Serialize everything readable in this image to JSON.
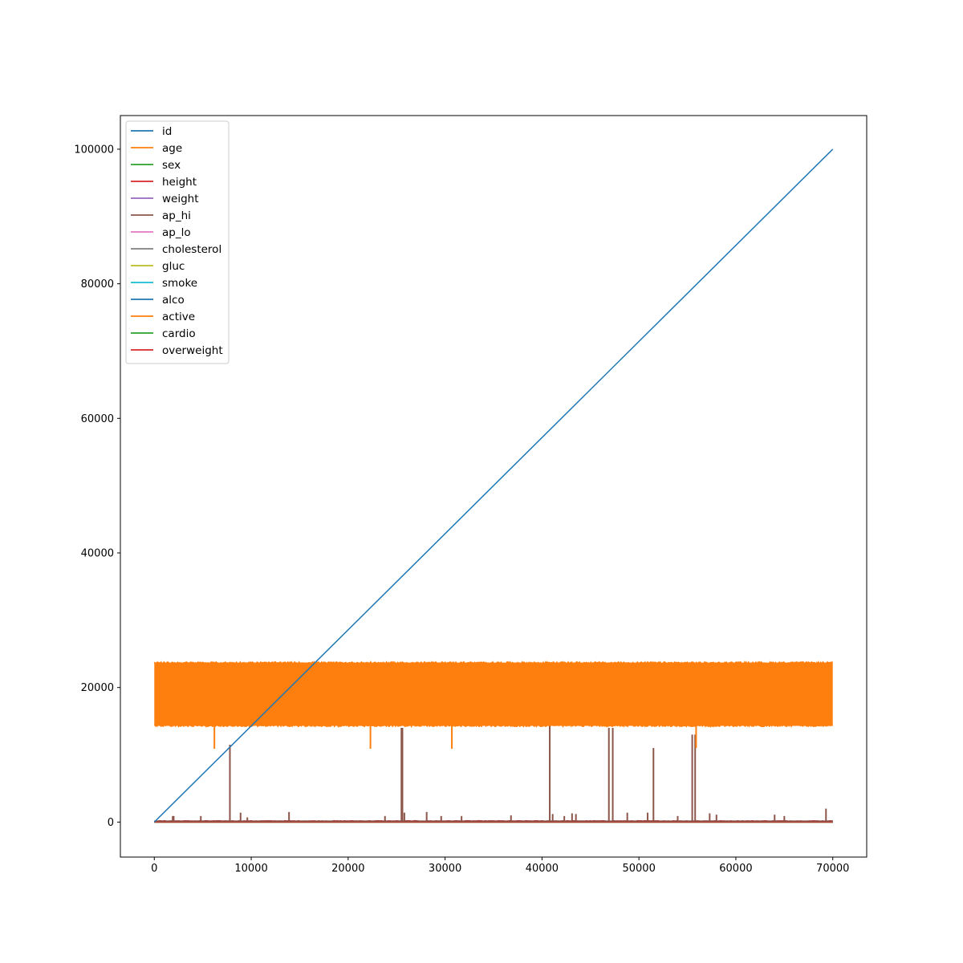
{
  "chart_data": {
    "type": "line",
    "title": "",
    "xlabel": "",
    "ylabel": "",
    "xlim": [
      -3500,
      73500
    ],
    "ylim": [
      -5200,
      105000
    ],
    "x_ticks": [
      0,
      10000,
      20000,
      30000,
      40000,
      50000,
      60000,
      70000
    ],
    "x_tick_labels": [
      "0",
      "10000",
      "20000",
      "30000",
      "40000",
      "50000",
      "60000",
      "70000"
    ],
    "y_ticks": [
      0,
      20000,
      40000,
      60000,
      80000,
      100000
    ],
    "y_tick_labels": [
      "0",
      "20000",
      "40000",
      "60000",
      "80000",
      "100000"
    ],
    "grid": false,
    "legend_position": "upper-left",
    "row_count": 70000,
    "series": [
      {
        "name": "id",
        "color": "#1f77b4",
        "description": "linear from 0 to 99999",
        "start": 0,
        "end": 99999
      },
      {
        "name": "age",
        "color": "#ff7f0e",
        "description": "dense band between ~14300 and ~23700",
        "band": [
          14300,
          23700
        ],
        "dips": [
          {
            "x": 6200,
            "y": 10900
          },
          {
            "x": 22300,
            "y": 10900
          },
          {
            "x": 30700,
            "y": 10900
          },
          {
            "x": 55900,
            "y": 11000
          }
        ]
      },
      {
        "name": "sex",
        "color": "#2ca02c",
        "typical": 1.5
      },
      {
        "name": "height",
        "color": "#d62728",
        "typical": 165
      },
      {
        "name": "weight",
        "color": "#9467bd",
        "typical": 74
      },
      {
        "name": "ap_hi",
        "color": "#8c564b",
        "typical": 127,
        "spikes": [
          {
            "x": 1900,
            "y": 900
          },
          {
            "x": 2000,
            "y": 900
          },
          {
            "x": 4800,
            "y": 900
          },
          {
            "x": 7800,
            "y": 11500
          },
          {
            "x": 8900,
            "y": 1400
          },
          {
            "x": 9600,
            "y": 700
          },
          {
            "x": 13900,
            "y": 1500
          },
          {
            "x": 23800,
            "y": 900
          },
          {
            "x": 25500,
            "y": 14000
          },
          {
            "x": 25600,
            "y": 14000
          },
          {
            "x": 25800,
            "y": 1400
          },
          {
            "x": 28100,
            "y": 1500
          },
          {
            "x": 29600,
            "y": 900
          },
          {
            "x": 31700,
            "y": 900
          },
          {
            "x": 36800,
            "y": 1000
          },
          {
            "x": 40800,
            "y": 16000
          },
          {
            "x": 41100,
            "y": 1200
          },
          {
            "x": 42300,
            "y": 900
          },
          {
            "x": 43100,
            "y": 1300
          },
          {
            "x": 43500,
            "y": 1200
          },
          {
            "x": 46900,
            "y": 14000
          },
          {
            "x": 47300,
            "y": 14000
          },
          {
            "x": 48800,
            "y": 1400
          },
          {
            "x": 50900,
            "y": 1400
          },
          {
            "x": 51500,
            "y": 11000
          },
          {
            "x": 54000,
            "y": 900
          },
          {
            "x": 55500,
            "y": 13000
          },
          {
            "x": 55800,
            "y": 13000
          },
          {
            "x": 57300,
            "y": 1300
          },
          {
            "x": 58000,
            "y": 1100
          },
          {
            "x": 64000,
            "y": 1100
          },
          {
            "x": 65000,
            "y": 900
          },
          {
            "x": 69300,
            "y": 2000
          }
        ]
      },
      {
        "name": "ap_lo",
        "color": "#e377c2",
        "typical": 81
      },
      {
        "name": "cholesterol",
        "color": "#7f7f7f",
        "typical": 1.4
      },
      {
        "name": "gluc",
        "color": "#bcbd22",
        "typical": 1.2
      },
      {
        "name": "smoke",
        "color": "#17becf",
        "typical": 0.1
      },
      {
        "name": "alco",
        "color": "#1f77b4",
        "typical": 0.05
      },
      {
        "name": "active",
        "color": "#ff7f0e",
        "typical": 0.8
      },
      {
        "name": "cardio",
        "color": "#2ca02c",
        "typical": 0.5
      },
      {
        "name": "overweight",
        "color": "#d62728",
        "typical": 0.5
      }
    ]
  }
}
